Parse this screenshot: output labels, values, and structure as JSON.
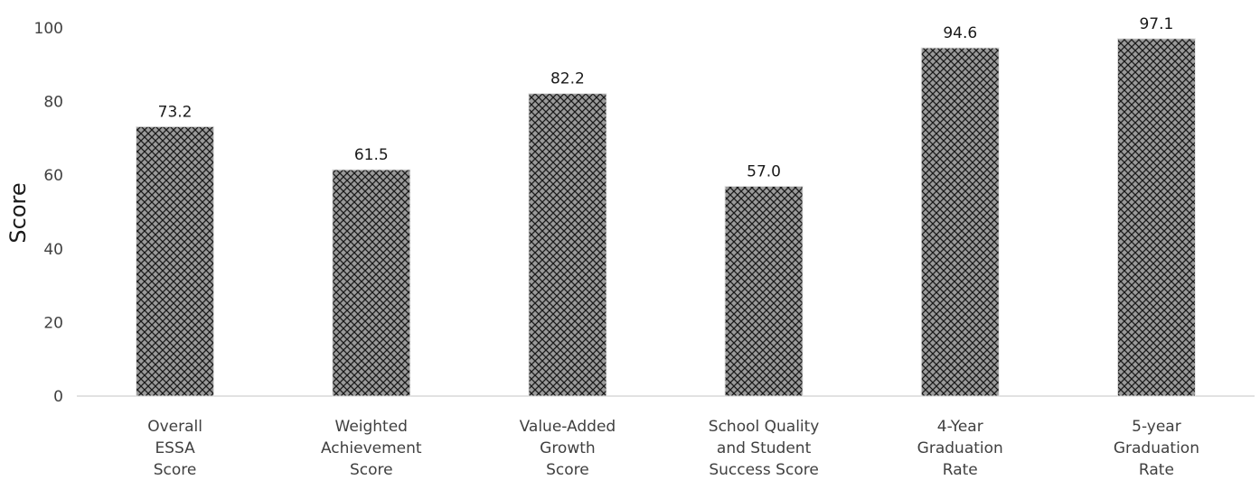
{
  "chart_data": {
    "type": "bar",
    "categories": [
      [
        "Overall",
        "ESSA",
        "Score"
      ],
      [
        "Weighted",
        "Achievement",
        "Score"
      ],
      [
        "Value-Added",
        "Growth",
        "Score"
      ],
      [
        "School Quality",
        "and Student",
        "Success Score"
      ],
      [
        "4-Year",
        "Graduation",
        "Rate"
      ],
      [
        "5-year",
        "Graduation",
        "Rate"
      ]
    ],
    "values": [
      73.2,
      61.5,
      82.2,
      57.0,
      94.6,
      97.1
    ],
    "value_labels": [
      "73.2",
      "61.5",
      "82.2",
      "57.0",
      "94.6",
      "97.1"
    ],
    "ylabel": "Score",
    "xlabel": "",
    "ylim": [
      0,
      100
    ],
    "yticks": [
      0,
      20,
      40,
      60,
      80,
      100
    ],
    "grid": false,
    "bar_pattern": "crosshatch",
    "colors": {
      "bar_fill": "#9a9a9a",
      "hatch": "#1a1a1a",
      "axis": "#d9d9d9"
    }
  }
}
